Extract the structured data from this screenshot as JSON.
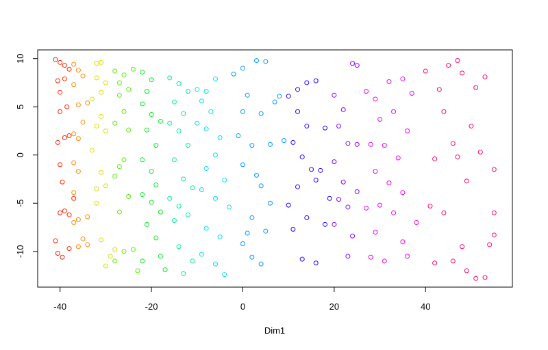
{
  "chart_data": {
    "type": "scatter",
    "x_label": "Dim1",
    "xlim": [
      -44.9,
      59
    ],
    "ylim": [
      -13.7,
      10.9
    ],
    "xticks": [
      -40,
      -20,
      0,
      20,
      40
    ],
    "yticks": [
      -10,
      -5,
      0,
      5,
      10
    ],
    "series": [
      {
        "color": "#ff2000",
        "x": [
          -41,
          -40,
          -39,
          -38,
          -40.5,
          -39,
          -40,
          -38.5,
          -40,
          -39,
          -40.5,
          -38,
          -40,
          -39.5,
          -40,
          -39,
          -38,
          -40.5,
          -39.5,
          -38,
          -37,
          -41
        ],
        "values": [
          9.9,
          9.6,
          9.3,
          8.9,
          7.7,
          7.9,
          6.5,
          5,
          4.5,
          1.8,
          1.3,
          2,
          -1,
          -2.8,
          -6,
          -5.8,
          -6.2,
          -10.2,
          -10.6,
          -9.7,
          -4.5,
          -8.9
        ]
      },
      {
        "color": "#ff8800",
        "x": [
          -37,
          -36,
          -35,
          -37,
          -36,
          -34,
          -35,
          -37,
          -36,
          -37,
          -36,
          -37,
          -36,
          -34,
          -37,
          -36,
          -34,
          -35
        ],
        "values": [
          9.4,
          8.8,
          8.2,
          7.3,
          5.2,
          5.4,
          3.4,
          2.2,
          1.7,
          -0.8,
          -1.7,
          -3.9,
          -6.7,
          -6.4,
          -7,
          -9.5,
          -9.3,
          -8.7
        ]
      },
      {
        "color": "#dddd00",
        "x": [
          -32,
          -31,
          -32,
          -30,
          -31,
          -33,
          -31,
          -32,
          -30,
          -33,
          -31,
          -30,
          -32,
          -31,
          -29,
          -30,
          -28,
          -32
        ],
        "values": [
          9.5,
          9.6,
          8,
          7.5,
          6.5,
          5.8,
          4,
          3,
          2.5,
          0.5,
          -1.8,
          -3.2,
          -5,
          -8.8,
          -10.5,
          -11.5,
          -9.8,
          -3.5
        ]
      },
      {
        "color": "#55ee00",
        "x": [
          -28,
          -26,
          -27,
          -24,
          -25,
          -27,
          -26,
          -28,
          -25,
          -26,
          -28,
          -25,
          -27,
          -26,
          -28,
          -23,
          -24,
          -27
        ],
        "values": [
          8.7,
          8.3,
          7.5,
          8.9,
          6.8,
          6.2,
          4.5,
          3.3,
          2.6,
          -0.5,
          -2.2,
          -4.3,
          -5.9,
          -10,
          -11,
          -12,
          -9.8,
          -1.2
        ]
      },
      {
        "color": "#00ee22",
        "x": [
          -22,
          -20,
          -21,
          -22,
          -20,
          -18,
          -21,
          -19,
          -22,
          -20,
          -19,
          -22,
          -20,
          -18,
          -21,
          -22,
          -18,
          -17,
          -19
        ],
        "values": [
          8.6,
          7.8,
          6.6,
          5.3,
          4.2,
          3.5,
          2.6,
          1,
          -0.5,
          -1.7,
          -3.1,
          -4.1,
          -4.9,
          -5.9,
          -7.2,
          -11,
          -10.5,
          -11.9,
          -8.6
        ]
      },
      {
        "color": "#00ee99",
        "x": [
          -16,
          -14,
          -12,
          -15,
          -13,
          -16,
          -14,
          -12,
          -15,
          -13,
          -16,
          -14,
          -12,
          -15,
          -14,
          -13,
          -11,
          -11
        ],
        "values": [
          8,
          7.4,
          6.6,
          5.5,
          4.3,
          3.3,
          2.5,
          1,
          -0.5,
          -2.5,
          -4.5,
          -5.3,
          -6.2,
          -6.8,
          -9.5,
          -12.3,
          -11,
          -3.4
        ]
      },
      {
        "color": "#00ddee",
        "x": [
          -10,
          -8,
          -6,
          -9,
          -7,
          -10,
          -8,
          -5,
          -6,
          -8,
          -4,
          -9,
          -6,
          -3,
          -8,
          -5,
          -6,
          -4,
          -9
        ],
        "values": [
          6.8,
          6.6,
          7.9,
          5.6,
          4.5,
          3.3,
          2.7,
          1.8,
          0,
          -1.4,
          -2.6,
          -3.6,
          -4.5,
          -5.4,
          -7.6,
          -8.5,
          -11.3,
          -12.4,
          -10.3
        ]
      },
      {
        "color": "#0099ff",
        "x": [
          -2,
          0,
          3,
          5,
          1,
          4,
          0,
          -1,
          2,
          0,
          3,
          4,
          6,
          2,
          5,
          1,
          2,
          4,
          0,
          7,
          8,
          6,
          9
        ],
        "values": [
          8.4,
          9,
          9.8,
          9.7,
          6.2,
          4.3,
          4.5,
          2,
          1,
          -1,
          -2.1,
          -3.2,
          -5,
          -6.5,
          -7.9,
          -8.1,
          -10.6,
          -11.3,
          -9.2,
          5.5,
          6.1,
          1.1,
          1.5
        ]
      },
      {
        "color": "#2200ff",
        "x": [
          10,
          12,
          14,
          16,
          12,
          14,
          11,
          13,
          15,
          12,
          16,
          10,
          14,
          11,
          13,
          16,
          18,
          19,
          17,
          18
        ],
        "values": [
          6.1,
          6.8,
          7.5,
          7.7,
          4.5,
          3,
          1.3,
          -0.2,
          -1.5,
          -3.3,
          -2.6,
          -5.2,
          -6.5,
          -7.7,
          -10.8,
          -11.2,
          -7.2,
          -4.5,
          -1.6,
          2.8
        ]
      },
      {
        "color": "#8800ff",
        "x": [
          20,
          22,
          24,
          25,
          21,
          23,
          20,
          22,
          25,
          21,
          23,
          20,
          24,
          25,
          23
        ],
        "values": [
          6.2,
          4.7,
          9.5,
          9.3,
          3,
          1.2,
          -0.7,
          -2.8,
          -3.8,
          -4.6,
          -5.4,
          -7.2,
          -8.4,
          1.1,
          -10.5
        ]
      },
      {
        "color": "#ee00ee",
        "x": [
          27,
          29,
          32,
          35,
          30,
          33,
          28,
          31,
          34,
          29,
          32,
          35,
          27,
          30,
          33,
          29,
          35,
          28,
          31,
          36,
          37,
          36,
          38
        ],
        "values": [
          6.6,
          5.8,
          7.6,
          7.9,
          3.7,
          4.5,
          1.1,
          1,
          -0.3,
          -1.7,
          -2.9,
          -3.9,
          -5.5,
          -5.2,
          -6,
          -8,
          -9,
          -10.6,
          -11,
          -10.5,
          6.4,
          2.5,
          -7
        ]
      },
      {
        "color": "#ff0077",
        "x": [
          40,
          43,
          45,
          47,
          48,
          51,
          53,
          44,
          50,
          46,
          42,
          47,
          52,
          55,
          41,
          44,
          49,
          55,
          48,
          54,
          42,
          46,
          49,
          51,
          53,
          55
        ],
        "values": [
          8.7,
          6.8,
          9.3,
          9.8,
          8.5,
          7,
          8.1,
          4.5,
          3,
          1.2,
          -0.4,
          -0.2,
          0.3,
          -1.5,
          -5.3,
          -6,
          -2.7,
          -6,
          -9.5,
          -9.3,
          -11.2,
          -11,
          -12,
          -12.8,
          -12.7,
          -8.3
        ]
      }
    ]
  }
}
